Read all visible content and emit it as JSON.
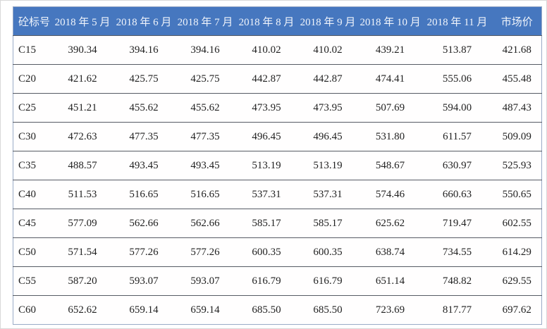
{
  "chart_data": {
    "type": "table",
    "title": "",
    "columns": [
      "砼标号",
      "2018 年 5 月",
      "2018 年 6 月",
      "2018 年 7 月",
      "2018 年 8 月",
      "2018 年 9 月",
      "2018 年 10 月",
      "2018 年 11 月",
      "市场价"
    ],
    "rows": [
      {
        "grade": "C15",
        "values": [
          "390.34",
          "394.16",
          "394.16",
          "410.02",
          "410.02",
          "439.21",
          "513.87",
          "421.68"
        ]
      },
      {
        "grade": "C20",
        "values": [
          "421.62",
          "425.75",
          "425.75",
          "442.87",
          "442.87",
          "474.41",
          "555.06",
          "455.48"
        ]
      },
      {
        "grade": "C25",
        "values": [
          "451.21",
          "455.62",
          "455.62",
          "473.95",
          "473.95",
          "507.69",
          "594.00",
          "487.43"
        ]
      },
      {
        "grade": "C30",
        "values": [
          "472.63",
          "477.35",
          "477.35",
          "496.45",
          "496.45",
          "531.80",
          "611.57",
          "509.09"
        ]
      },
      {
        "grade": "C35",
        "values": [
          "488.57",
          "493.45",
          "493.45",
          "513.19",
          "513.19",
          "548.67",
          "630.97",
          "525.93"
        ]
      },
      {
        "grade": "C40",
        "values": [
          "511.53",
          "516.65",
          "516.65",
          "537.31",
          "537.31",
          "574.46",
          "660.63",
          "550.65"
        ]
      },
      {
        "grade": "C45",
        "values": [
          "577.09",
          "562.66",
          "562.66",
          "585.17",
          "585.17",
          "625.62",
          "719.47",
          "602.55"
        ]
      },
      {
        "grade": "C50",
        "values": [
          "571.54",
          "577.26",
          "577.26",
          "600.35",
          "600.35",
          "638.74",
          "734.55",
          "614.29"
        ]
      },
      {
        "grade": "C55",
        "values": [
          "587.20",
          "593.07",
          "593.07",
          "616.79",
          "616.79",
          "651.14",
          "748.82",
          "629.55"
        ]
      },
      {
        "grade": "C60",
        "values": [
          "652.62",
          "659.14",
          "659.14",
          "685.50",
          "685.50",
          "723.69",
          "817.77",
          "697.62"
        ]
      }
    ]
  },
  "colors": {
    "header_bg": "#4677BF",
    "header_text": "#F0F4FB",
    "row_line": "#565B64",
    "outer_border": "#9AABC7",
    "body_text": "#1F1F1F"
  }
}
